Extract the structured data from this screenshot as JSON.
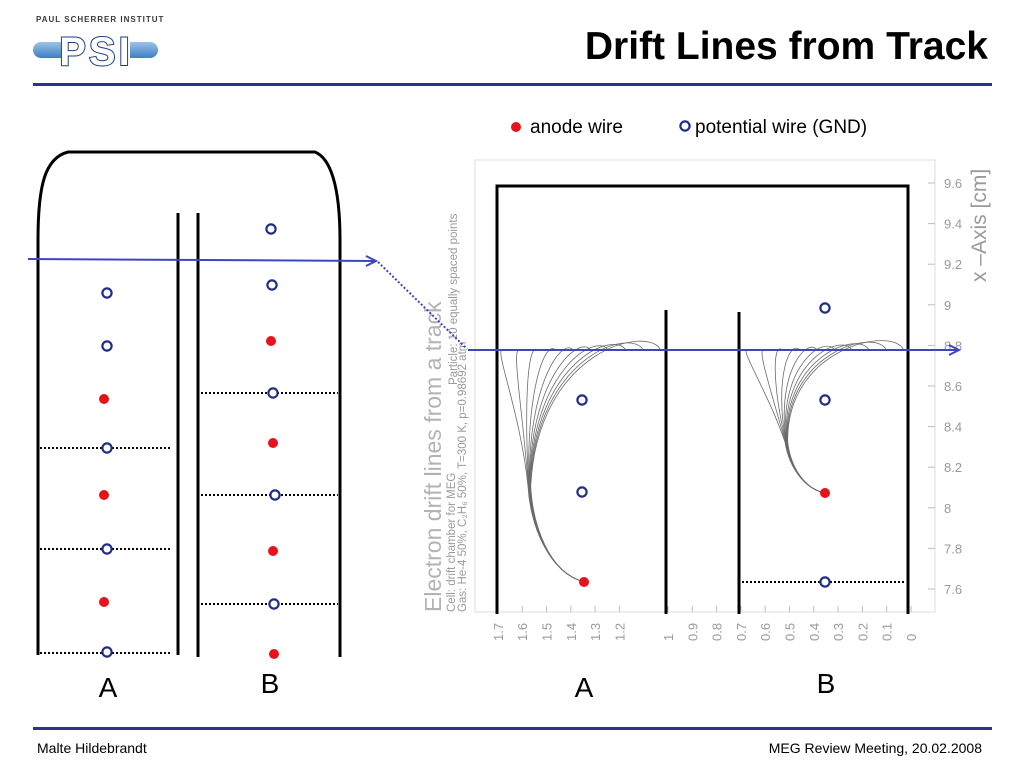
{
  "logo": {
    "institute": "PAUL SCHERRER INSTITUT",
    "mark": "PSI"
  },
  "title": "Drift Lines from Track",
  "legend": {
    "anode_label": "anode wire",
    "potential_label": "potential wire (GND)"
  },
  "labels": {
    "left_a": "A",
    "left_b": "B",
    "right_a": "A",
    "right_b": "B"
  },
  "plot": {
    "title": "Electron drift lines from a track",
    "cell": "Cell: drift chamber for MEG",
    "gas": "Gas: He-4 50%, C₂H₆ 50%, T=300 K, p=0.98692 atm",
    "particle": "Particle: 10 equally spaced points",
    "y_axis_title": "x –Axis [cm]",
    "y_ticks": [
      "9.6",
      "9.4",
      "9.2",
      "9",
      "8.8",
      "8.6",
      "8.4",
      "8.2",
      "8",
      "7.8",
      "7.6"
    ],
    "x_ticks": [
      "1.7",
      "1.6",
      "1.5",
      "1.4",
      "1.3",
      "1.2",
      "1",
      "0.9",
      "0.8",
      "0.7",
      "0.6",
      "0.5",
      "0.4",
      "0.3",
      "0.2",
      "0.1",
      "0"
    ]
  },
  "footer": {
    "author": "Malte Hildebrandt",
    "event": "MEG Review Meeting, 20.02.2008"
  },
  "colors": {
    "accent": "#2e3192",
    "anode": "#e5131b",
    "potential_wire": "#1f2d86",
    "arrow": "#3c46c2",
    "axis_text": "#9a9a9a"
  }
}
